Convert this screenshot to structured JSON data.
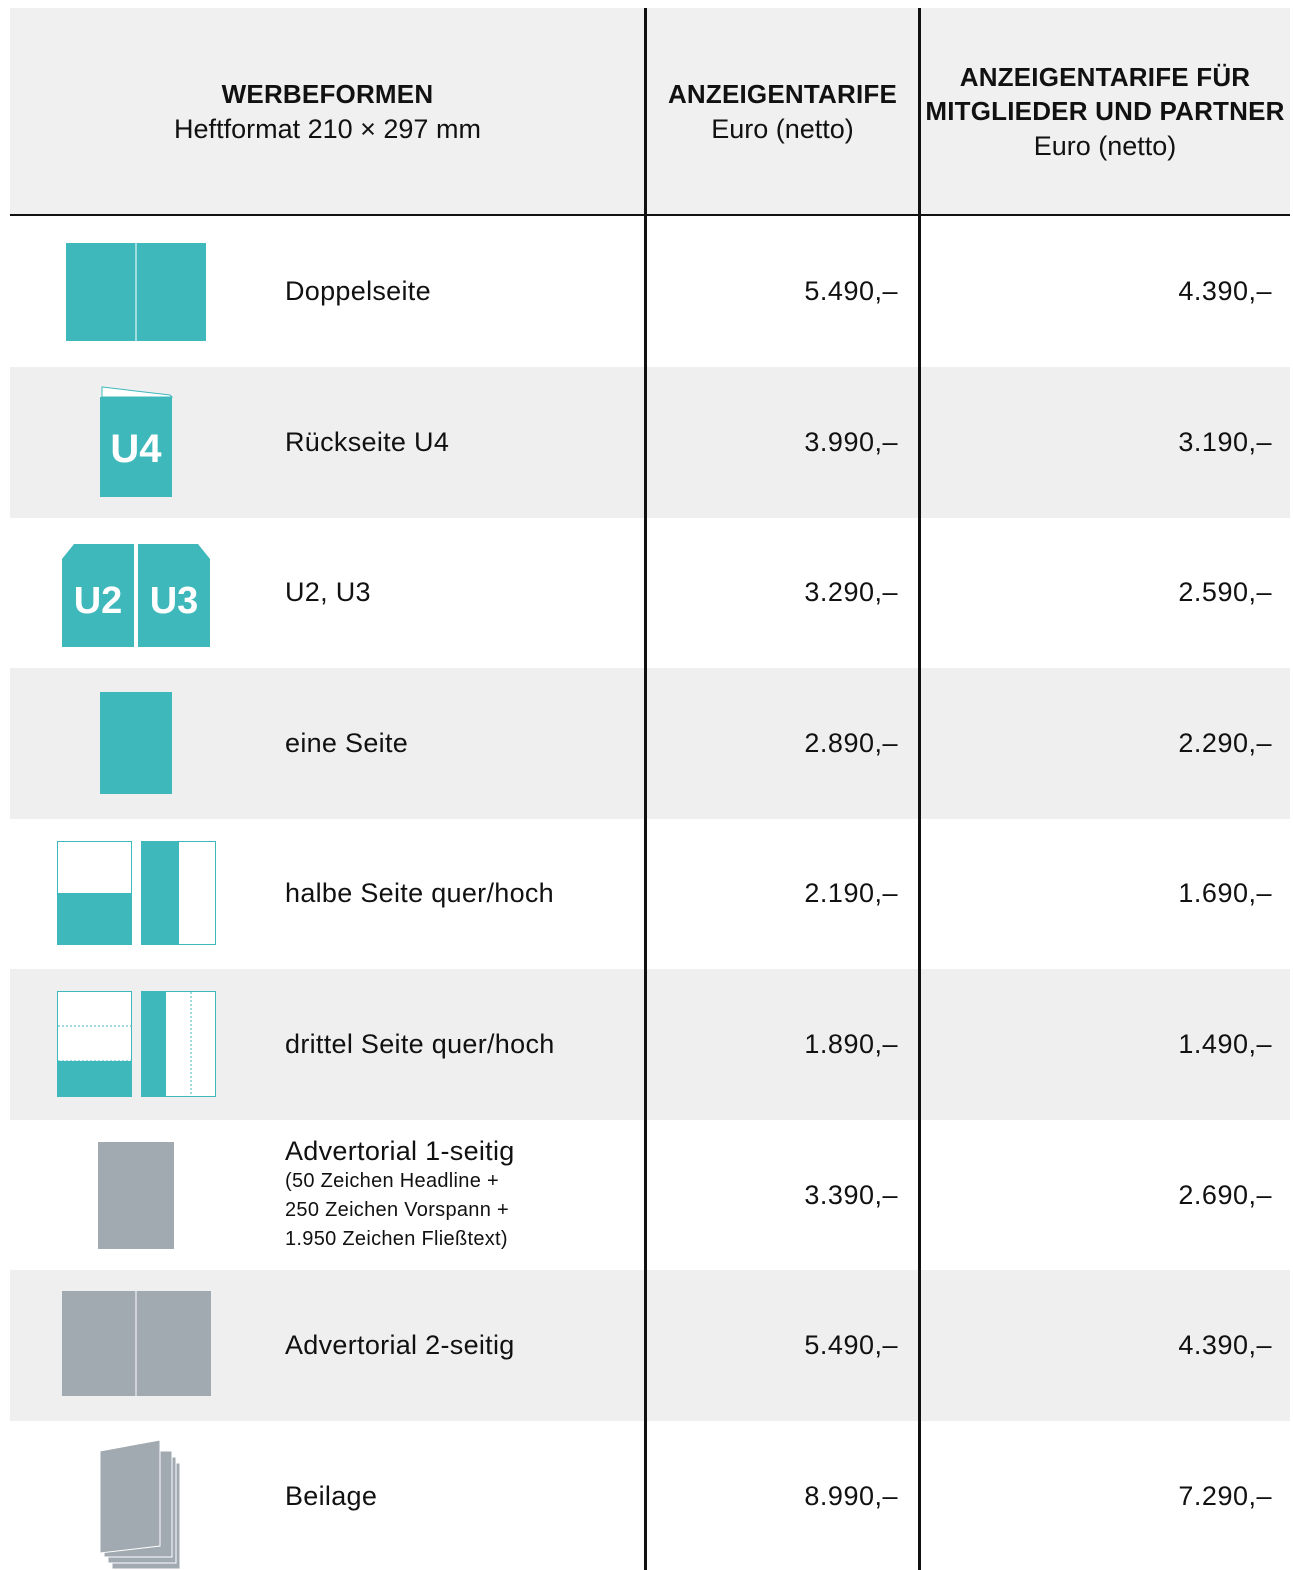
{
  "header": {
    "columns": [
      {
        "title": [
          "WERBEFORMEN"
        ],
        "subtitle": "Heftformat 210 × 297 mm"
      },
      {
        "title": [
          "ANZEIGENTARIFE"
        ],
        "subtitle": "Euro (netto)"
      },
      {
        "title": [
          "ANZEIGENTARIFE FÜR",
          "MITGLIEDER UND PARTNER"
        ],
        "subtitle": "Euro (netto)"
      }
    ]
  },
  "table": {
    "rows": [
      {
        "label": "Doppelseite",
        "price": "5.490,–",
        "member_price": "4.390,–"
      },
      {
        "label": "Rückseite U4",
        "icon_text": [
          "U4"
        ],
        "price": "3.990,–",
        "member_price": "3.190,–"
      },
      {
        "label": "U2, U3",
        "icon_text": [
          "U2",
          "U3"
        ],
        "price": "3.290,–",
        "member_price": "2.590,–"
      },
      {
        "label": "eine Seite",
        "price": "2.890,–",
        "member_price": "2.290,–"
      },
      {
        "label": "halbe Seite quer/hoch",
        "price": "2.190,–",
        "member_price": "1.690,–"
      },
      {
        "label": "drittel Seite quer/hoch",
        "price": "1.890,–",
        "member_price": "1.490,–"
      },
      {
        "label": "Advertorial 1-seitig",
        "note": [
          "(50 Zeichen Headline +",
          "250 Zeichen Vorspann +",
          "1.950 Zeichen Fließtext)"
        ],
        "price": "3.390,–",
        "member_price": "2.690,–"
      },
      {
        "label": "Advertorial 2-seitig",
        "price": "5.490,–",
        "member_price": "4.390,–"
      },
      {
        "label": "Beilage",
        "price": "8.990,–",
        "member_price": "7.290,–"
      }
    ]
  }
}
